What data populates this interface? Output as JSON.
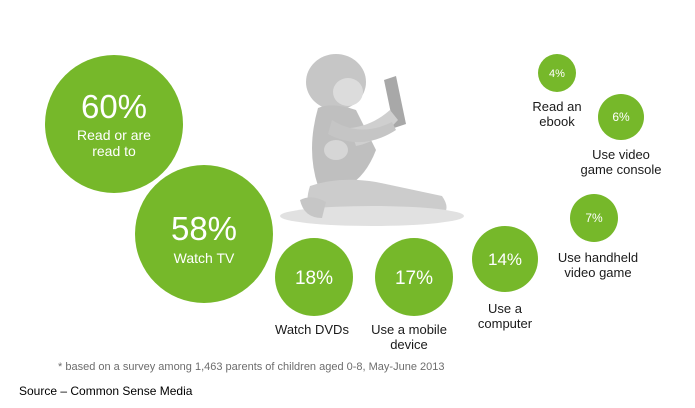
{
  "chart_data": {
    "type": "bubble",
    "unit": "%",
    "items": [
      {
        "label_lines": [
          "Read or are",
          "read to"
        ],
        "value": 60,
        "label_inside": true
      },
      {
        "label_lines": [
          "Watch TV"
        ],
        "value": 58,
        "label_inside": true
      },
      {
        "label_lines": [
          "Watch DVDs"
        ],
        "value": 18,
        "label_inside": false
      },
      {
        "label_lines": [
          "Use a mobile",
          "device"
        ],
        "value": 17,
        "label_inside": false
      },
      {
        "label_lines": [
          "Use a",
          "computer"
        ],
        "value": 14,
        "label_inside": false
      },
      {
        "label_lines": [
          "Use handheld",
          "video game"
        ],
        "value": 7,
        "label_inside": false
      },
      {
        "label_lines": [
          "Use video",
          "game console"
        ],
        "value": 6,
        "label_inside": false
      },
      {
        "label_lines": [
          "Read an",
          "ebook"
        ],
        "value": 4,
        "label_inside": false
      }
    ],
    "bubble_color": "#76b82a"
  },
  "footnote": "* based on a survey among 1,463 parents of children aged 0-8, May-June 2013",
  "source": "Source – Common Sense Media",
  "illustration": "child-silhouette"
}
